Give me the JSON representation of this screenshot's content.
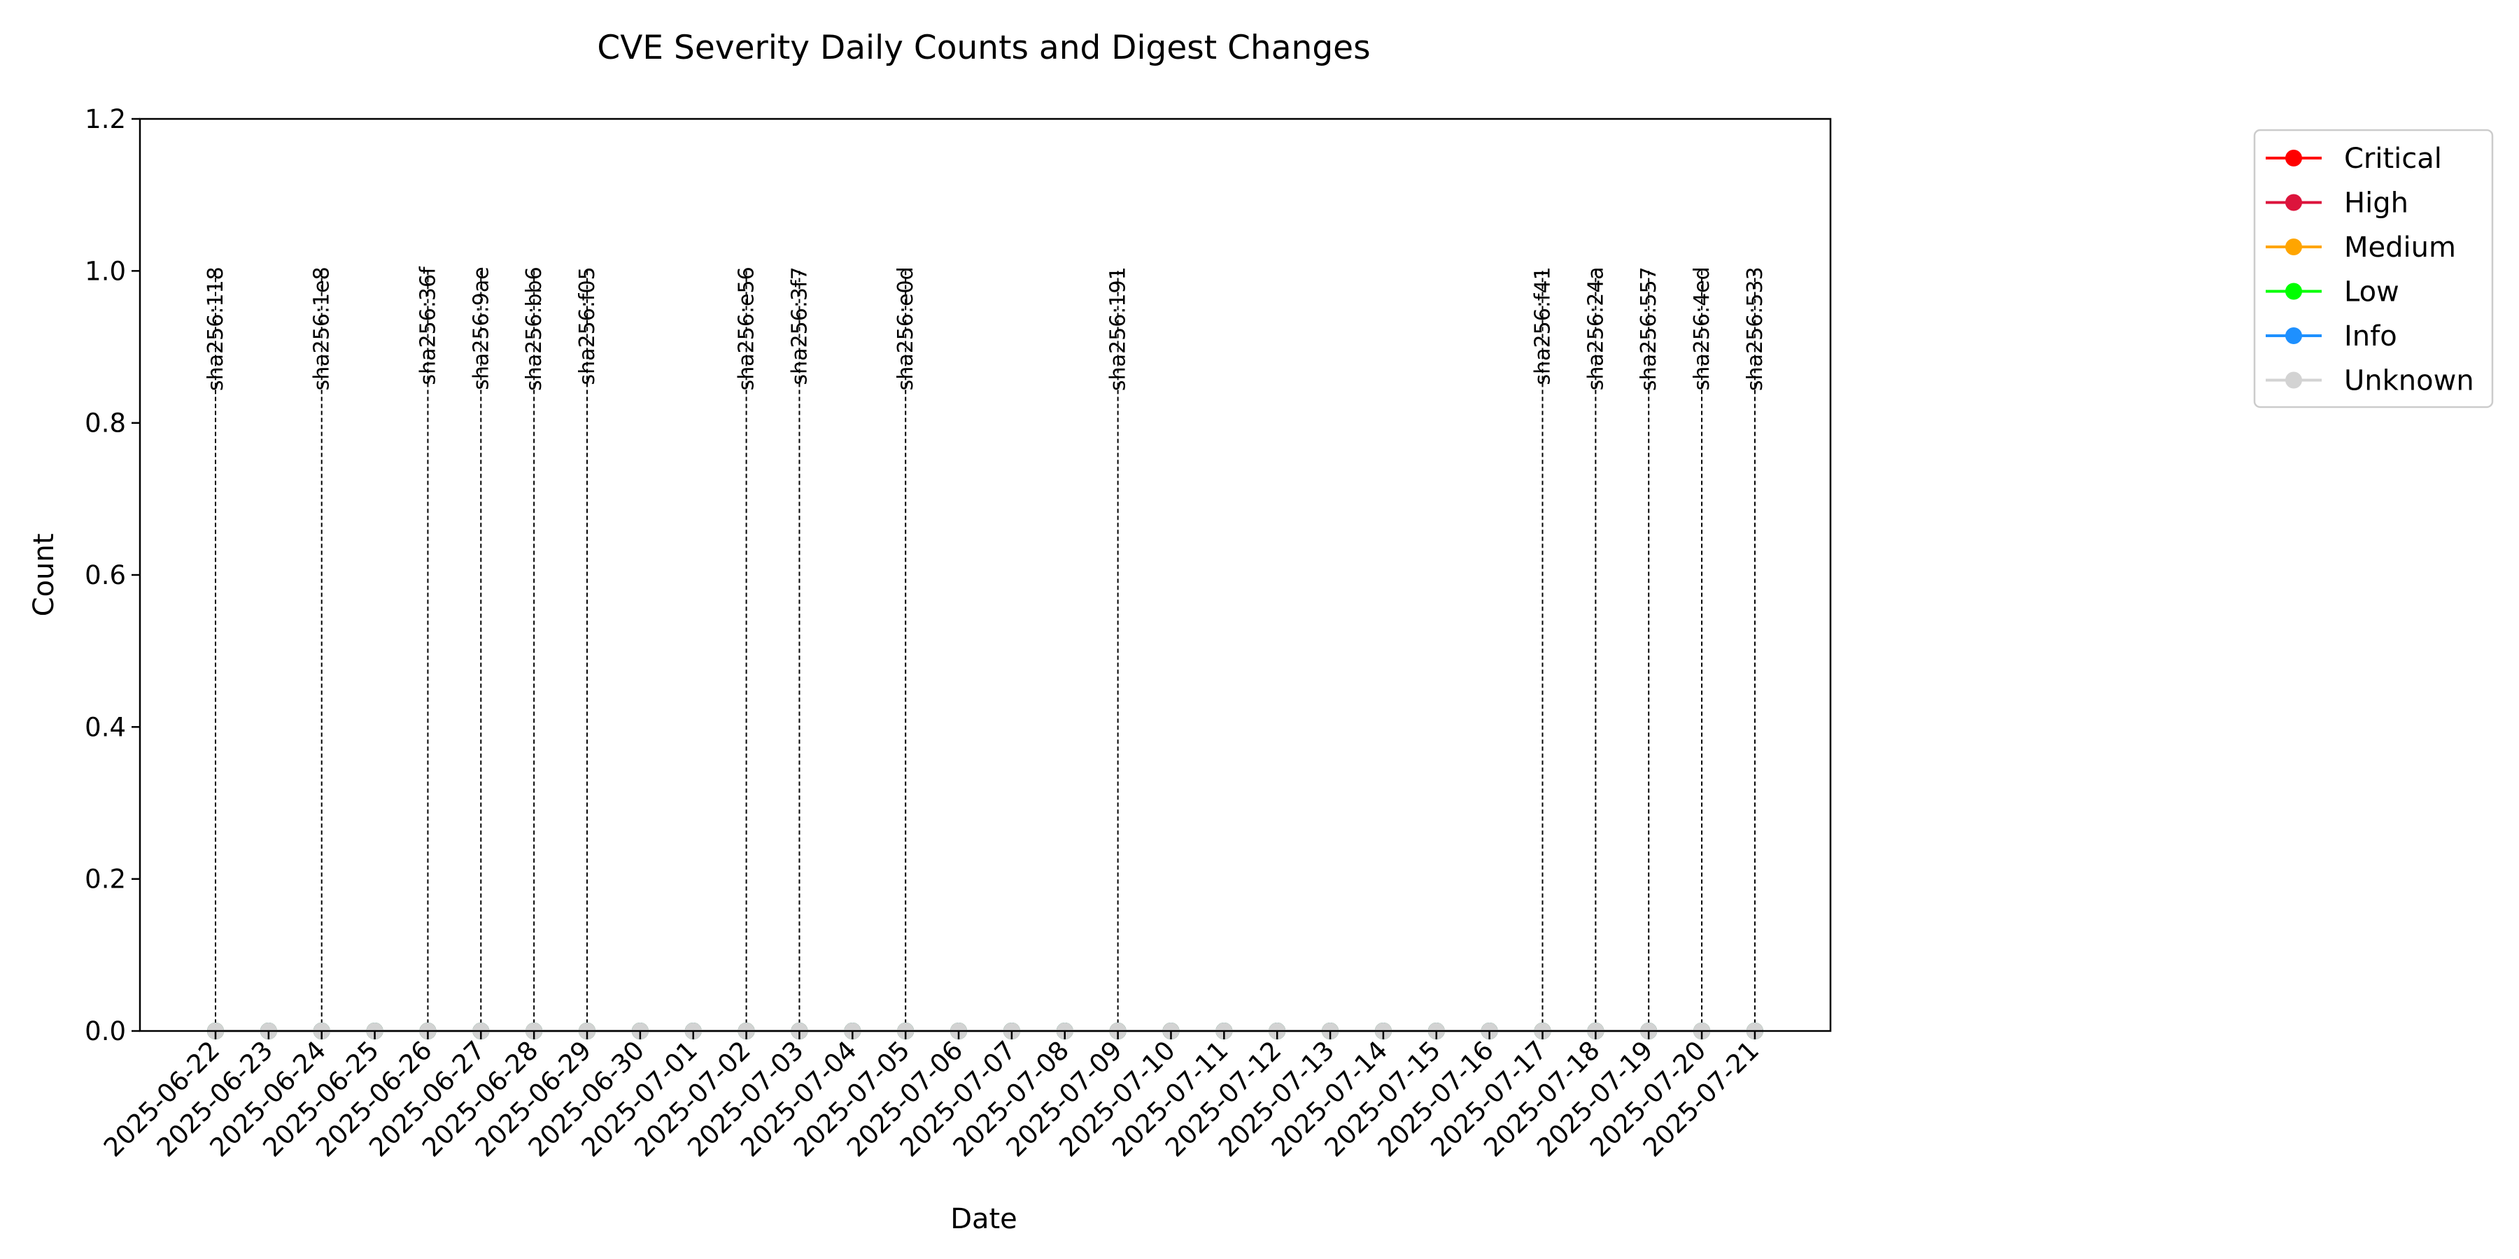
{
  "chart_data": {
    "type": "line",
    "title": "CVE Severity Daily Counts and Digest Changes",
    "xlabel": "Date",
    "ylabel": "Count",
    "ylim": [
      0,
      1.2
    ],
    "yticks": [
      0.0,
      0.2,
      0.4,
      0.6,
      0.8,
      1.0,
      1.2
    ],
    "ytick_labels": [
      "0.0",
      "0.2",
      "0.4",
      "0.6",
      "0.8",
      "1.0",
      "1.2"
    ],
    "grid": false,
    "legend_position": "outside-top-right",
    "x": [
      "2025-06-22",
      "2025-06-23",
      "2025-06-24",
      "2025-06-25",
      "2025-06-26",
      "2025-06-27",
      "2025-06-28",
      "2025-06-29",
      "2025-06-30",
      "2025-07-01",
      "2025-07-02",
      "2025-07-03",
      "2025-07-04",
      "2025-07-05",
      "2025-07-06",
      "2025-07-07",
      "2025-07-08",
      "2025-07-09",
      "2025-07-10",
      "2025-07-11",
      "2025-07-12",
      "2025-07-13",
      "2025-07-14",
      "2025-07-15",
      "2025-07-16",
      "2025-07-17",
      "2025-07-18",
      "2025-07-19",
      "2025-07-20",
      "2025-07-21"
    ],
    "series": [
      {
        "name": "Critical",
        "color": "#ff0000",
        "values": [
          0,
          0,
          0,
          0,
          0,
          0,
          0,
          0,
          0,
          0,
          0,
          0,
          0,
          0,
          0,
          0,
          0,
          0,
          0,
          0,
          0,
          0,
          0,
          0,
          0,
          0,
          0,
          0,
          0,
          0
        ]
      },
      {
        "name": "High",
        "color": "#dc143c",
        "values": [
          0,
          0,
          0,
          0,
          0,
          0,
          0,
          0,
          0,
          0,
          0,
          0,
          0,
          0,
          0,
          0,
          0,
          0,
          0,
          0,
          0,
          0,
          0,
          0,
          0,
          0,
          0,
          0,
          0,
          0
        ]
      },
      {
        "name": "Medium",
        "color": "#ffa500",
        "values": [
          0,
          0,
          0,
          0,
          0,
          0,
          0,
          0,
          0,
          0,
          0,
          0,
          0,
          0,
          0,
          0,
          0,
          0,
          0,
          0,
          0,
          0,
          0,
          0,
          0,
          0,
          0,
          0,
          0,
          0
        ]
      },
      {
        "name": "Low",
        "color": "#00ff00",
        "values": [
          0,
          0,
          0,
          0,
          0,
          0,
          0,
          0,
          0,
          0,
          0,
          0,
          0,
          0,
          0,
          0,
          0,
          0,
          0,
          0,
          0,
          0,
          0,
          0,
          0,
          0,
          0,
          0,
          0,
          0
        ]
      },
      {
        "name": "Info",
        "color": "#1e90ff",
        "values": [
          0,
          0,
          0,
          0,
          0,
          0,
          0,
          0,
          0,
          0,
          0,
          0,
          0,
          0,
          0,
          0,
          0,
          0,
          0,
          0,
          0,
          0,
          0,
          0,
          0,
          0,
          0,
          0,
          0,
          0
        ]
      },
      {
        "name": "Unknown",
        "color": "#d3d3d3",
        "values": [
          0,
          0,
          0,
          0,
          0,
          0,
          0,
          0,
          0,
          0,
          0,
          0,
          0,
          0,
          0,
          0,
          0,
          0,
          0,
          0,
          0,
          0,
          0,
          0,
          0,
          0,
          0,
          0,
          0,
          0
        ]
      }
    ],
    "digest_changes": [
      {
        "date": "2025-06-22",
        "label": "sha256:118"
      },
      {
        "date": "2025-06-24",
        "label": "sha256:1e8"
      },
      {
        "date": "2025-06-26",
        "label": "sha256:36f"
      },
      {
        "date": "2025-06-27",
        "label": "sha256:9ae"
      },
      {
        "date": "2025-06-28",
        "label": "sha256:bb6"
      },
      {
        "date": "2025-06-29",
        "label": "sha256:f05"
      },
      {
        "date": "2025-07-02",
        "label": "sha256:e56"
      },
      {
        "date": "2025-07-03",
        "label": "sha256:3f7"
      },
      {
        "date": "2025-07-05",
        "label": "sha256:e0d"
      },
      {
        "date": "2025-07-09",
        "label": "sha256:191"
      },
      {
        "date": "2025-07-17",
        "label": "sha256:f41"
      },
      {
        "date": "2025-07-18",
        "label": "sha256:24a"
      },
      {
        "date": "2025-07-19",
        "label": "sha256:557"
      },
      {
        "date": "2025-07-20",
        "label": "sha256:4ed"
      },
      {
        "date": "2025-07-21",
        "label": "sha256:533"
      }
    ]
  }
}
